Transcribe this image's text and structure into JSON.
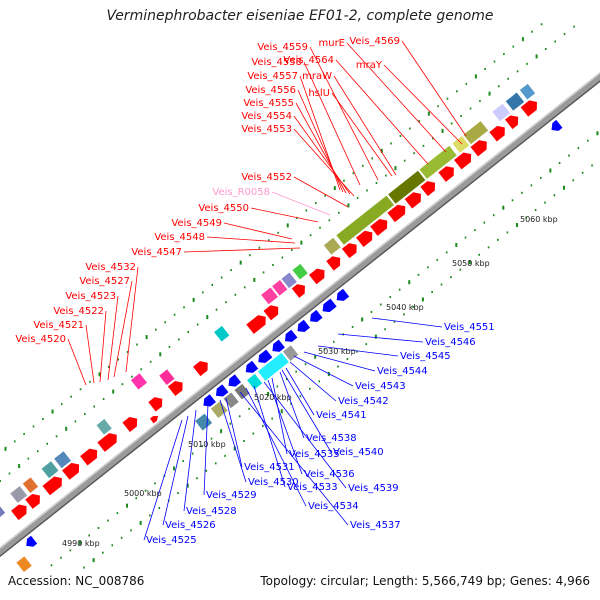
{
  "header": {
    "title": "Verminephrobacter eiseniae EF01-2, complete genome"
  },
  "footer": {
    "accession": "Accession: NC_008786",
    "summary": "Topology: circular; Length: 5,566,749 bp; Genes: 4,966"
  },
  "colors": {
    "forward": "#ff0000",
    "reverse": "#0000ff",
    "backbone": "#9a9a9a",
    "ticks": "#1a8a1a",
    "pseudo_label": "#ff99cc"
  },
  "scale_ticks": [
    "4990 kbp",
    "5000 kbp",
    "5010 kbp",
    "5020 kbp",
    "5030 kbp",
    "5040 kbp",
    "5050 kbp",
    "5060 kbp"
  ],
  "forward_labels": [
    "Veis_4520",
    "Veis_4521",
    "Veis_4522",
    "Veis_4523",
    "Veis_4527",
    "Veis_4532",
    "Veis_4547",
    "Veis_4548",
    "Veis_4549",
    "Veis_4550",
    "Veis_R0058",
    "Veis_4552",
    "Veis_4553",
    "Veis_4554",
    "Veis_4555",
    "Veis_4556",
    "Veis_4557",
    "Veis_4558",
    "Veis_4559",
    "hslU",
    "mraW",
    "Veis_4564",
    "murE",
    "mraY",
    "Veis_4569"
  ],
  "reverse_labels": [
    "Veis_4551",
    "Veis_4546",
    "Veis_4545",
    "Veis_4544",
    "Veis_4543",
    "Veis_4542",
    "Veis_4541",
    "Veis_4538",
    "Veis_4540",
    "Veis_4535",
    "Veis_4536",
    "Veis_4539",
    "Veis_4533",
    "Veis_4534",
    "Veis_4537",
    "Veis_4531",
    "Veis_4530",
    "Veis_4529",
    "Veis_4528",
    "Veis_4526",
    "Veis_4525"
  ]
}
